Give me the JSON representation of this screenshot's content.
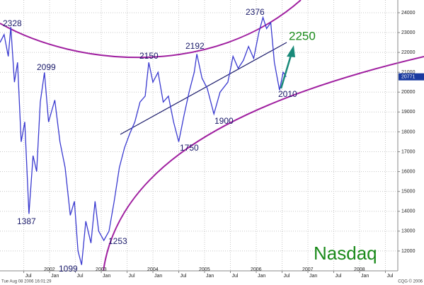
{
  "chart_data": {
    "type": "line",
    "x": [
      2001.04,
      2001.12,
      2001.2,
      2001.25,
      2001.32,
      2001.38,
      2001.45,
      2001.52,
      2001.6,
      2001.68,
      2001.75,
      2001.82,
      2001.9,
      2001.98,
      2002.1,
      2002.2,
      2002.3,
      2002.4,
      2002.48,
      2002.55,
      2002.62,
      2002.7,
      2002.8,
      2002.88,
      2002.95,
      2003.05,
      2003.15,
      2003.25,
      2003.35,
      2003.45,
      2003.55,
      2003.65,
      2003.75,
      2003.85,
      2003.92,
      2004.0,
      2004.1,
      2004.2,
      2004.3,
      2004.4,
      2004.5,
      2004.6,
      2004.7,
      2004.8,
      2004.85,
      2004.95,
      2005.05,
      2005.18,
      2005.3,
      2005.45,
      2005.55,
      2005.65,
      2005.75,
      2005.85,
      2005.95,
      2006.05,
      2006.13,
      2006.2,
      2006.28,
      2006.35,
      2006.4,
      2006.45,
      2006.52,
      2006.58
    ],
    "series": [
      {
        "color": "#3a3ad0",
        "values": [
          22500,
          22900,
          21800,
          23280,
          20500,
          21500,
          17500,
          18500,
          13870,
          16800,
          16000,
          19500,
          20990,
          18500,
          19600,
          17500,
          16200,
          13800,
          14500,
          12000,
          11300,
          13500,
          12400,
          14500,
          13000,
          12530,
          13000,
          14500,
          16200,
          17200,
          17900,
          18500,
          19500,
          19800,
          21500,
          20500,
          21000,
          19500,
          19800,
          18500,
          17500,
          18800,
          20000,
          21000,
          21920,
          20700,
          20200,
          18900,
          20000,
          20500,
          21800,
          21200,
          21600,
          22300,
          21700,
          23000,
          23760,
          23200,
          23500,
          21500,
          20800,
          20100,
          21000,
          20771
        ]
      }
    ],
    "xlim": [
      2001.04,
      2008.74
    ],
    "xticks": [
      {
        "value": 2001.5,
        "label": "Jul"
      },
      {
        "value": 2002,
        "label": "Jan"
      },
      {
        "value": 2002.5,
        "label": "Jul"
      },
      {
        "value": 2003,
        "label": "Jan"
      },
      {
        "value": 2003.5,
        "label": "Jul"
      },
      {
        "value": 2004,
        "label": "Jan"
      },
      {
        "value": 2004.5,
        "label": "Jul"
      },
      {
        "value": 2005,
        "label": "Jan"
      },
      {
        "value": 2005.5,
        "label": "Jul"
      },
      {
        "value": 2006,
        "label": "Jan"
      },
      {
        "value": 2006.5,
        "label": "Jul"
      },
      {
        "value": 2007,
        "label": "Jan"
      },
      {
        "value": 2007.5,
        "label": "Jul"
      },
      {
        "value": 2008,
        "label": "Jan"
      },
      {
        "value": 2008.5,
        "label": "Jul"
      }
    ],
    "xyears": [
      2002,
      2003,
      2004,
      2005,
      2006,
      2007,
      2008
    ],
    "ylim": [
      11000,
      24640
    ],
    "yticks": [
      12000,
      13000,
      14000,
      15000,
      16000,
      17000,
      18000,
      19000,
      20000,
      21000,
      22000,
      23000,
      24000
    ],
    "grid": true,
    "last_value": 20771,
    "annotations": [
      "2328",
      "2099",
      "1387",
      "1099",
      "1253",
      "2150",
      "1750",
      "2192",
      "1900",
      "2376",
      "2010",
      "2250",
      "Nasdaq"
    ],
    "footer_left": "Tue Aug 08 2006 16:01:29",
    "footer_right": "CQG © 2006"
  }
}
